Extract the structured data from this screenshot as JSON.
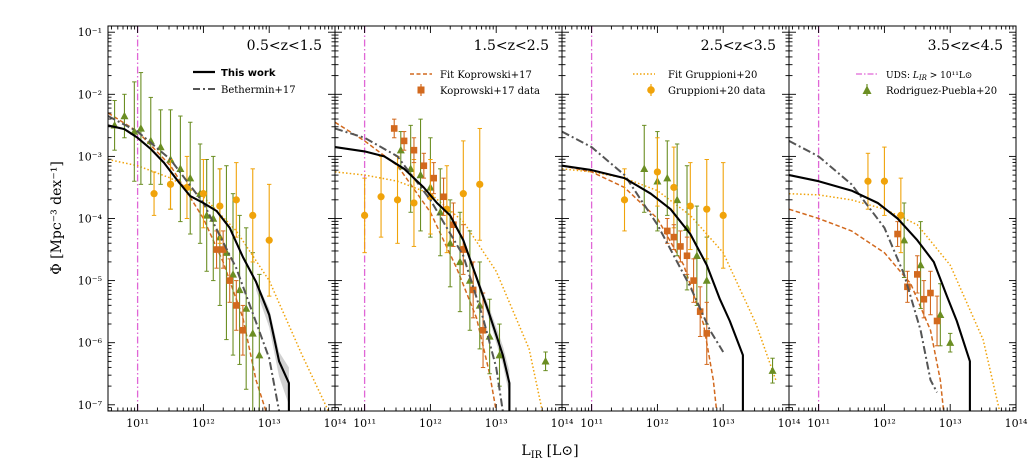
{
  "figure": {
    "ylabel": "Φ [Mpc⁻³ dex⁻¹]",
    "xlabel": "L_IR [L⊙]",
    "xlabel_main": "L",
    "xlabel_sub": "IR",
    "xlabel_unit": " [L⊙]",
    "ytick_labels": [
      "10⁻¹",
      "10⁻²",
      "10⁻³",
      "10⁻⁴",
      "10⁻⁵",
      "10⁻⁶",
      "10⁻⁷"
    ],
    "xtick_labels": [
      "10¹¹",
      "10¹²",
      "10¹³",
      "10¹⁴"
    ]
  },
  "colors": {
    "this_work": "#000000",
    "bethermin": "#555555",
    "koprowski": "#d2691e",
    "gruppioni": "#f0a30a",
    "rodriguez": "#6b8e23",
    "uds": "#e066d6",
    "band": "#cccccc"
  },
  "legend": {
    "this_work": "This work",
    "bethermin": "Bethermin+17",
    "fit_koprowski": "Fit Koprowski+17",
    "koprowski_data": "Koprowski+17 data",
    "fit_gruppioni": "Fit Gruppioni+20",
    "gruppioni_data": "Gruppioni+20 data",
    "uds": "UDS: L_IR > 10¹¹L⊙",
    "uds_prefix": "UDS: ",
    "uds_L": "L",
    "uds_sub": "IR",
    "uds_rest": " > 10¹¹L⊙",
    "rodriguez": "Rodriguez-Puebla+20"
  },
  "chart_data": [
    {
      "type": "line",
      "title": "0.5<z<1.5",
      "xscale": "log",
      "yscale": "log",
      "xlim": [
        10.55,
        14.0
      ],
      "ylim": [
        -7.1,
        -0.9
      ],
      "uds_x": 11.0,
      "series": [
        {
          "name": "This work",
          "x": [
            10.55,
            10.8,
            11.0,
            11.2,
            11.4,
            11.6,
            11.8,
            12.0,
            12.2,
            12.4,
            12.6,
            12.8,
            13.0,
            13.15,
            13.3,
            13.3
          ],
          "y": [
            -2.5,
            -2.56,
            -2.7,
            -2.88,
            -3.1,
            -3.38,
            -3.64,
            -3.75,
            -3.88,
            -4.15,
            -4.62,
            -5.02,
            -5.55,
            -6.3,
            -6.65,
            -7.1
          ]
        },
        {
          "name": "This work band upper",
          "x": [
            12.8,
            13.0,
            13.15,
            13.3
          ],
          "y": [
            -5.0,
            -5.45,
            -6.15,
            -6.4
          ]
        },
        {
          "name": "This work band lower",
          "x": [
            12.8,
            13.0,
            13.15,
            13.3
          ],
          "y": [
            -5.15,
            -5.75,
            -6.55,
            -7.0
          ]
        },
        {
          "name": "Bethermin+17",
          "x": [
            10.55,
            11.0,
            11.5,
            12.0,
            12.5,
            13.0,
            13.15
          ],
          "y": [
            -2.35,
            -2.6,
            -3.05,
            -3.75,
            -4.8,
            -6.25,
            -7.1
          ]
        },
        {
          "name": "Fit Koprowski+17",
          "x": [
            10.55,
            11.0,
            11.5,
            12.0,
            12.3,
            12.6,
            12.8,
            12.95
          ],
          "y": [
            -2.3,
            -2.6,
            -3.15,
            -4.0,
            -4.7,
            -5.6,
            -6.6,
            -7.1
          ]
        },
        {
          "name": "Fit Gruppioni+20",
          "x": [
            10.55,
            11.0,
            11.5,
            12.0,
            12.5,
            13.0,
            13.5,
            13.9
          ],
          "y": [
            -3.05,
            -3.15,
            -3.35,
            -3.65,
            -4.2,
            -5.0,
            -6.2,
            -7.1
          ]
        }
      ],
      "koprowski_data": {
        "x": [
          12.2,
          12.3,
          12.4,
          12.5,
          12.6
        ],
        "y": [
          -4.5,
          -4.5,
          -5.0,
          -5.4,
          -5.8
        ],
        "yerr": [
          0.3,
          0.3,
          0.35,
          0.4,
          0.4
        ]
      },
      "gruppioni_data": {
        "x": [
          11.25,
          11.5,
          11.75,
          12.0,
          12.25,
          12.5,
          12.75,
          13.0
        ],
        "y": [
          -3.6,
          -3.45,
          -3.5,
          -3.6,
          -3.8,
          -3.7,
          -3.95,
          -4.35
        ],
        "yerr": [
          0.35,
          0.4,
          0.5,
          0.55,
          0.6,
          0.6,
          0.75,
          0.9
        ]
      },
      "rodriguez_data": {
        "x": [
          10.65,
          10.8,
          10.95,
          11.05,
          11.2,
          11.35,
          11.5,
          11.65,
          11.8,
          11.95,
          12.05,
          12.15,
          12.25,
          12.35,
          12.45,
          12.55,
          12.65,
          12.75,
          12.85
        ],
        "y": [
          -2.5,
          -2.35,
          -2.6,
          -2.55,
          -2.75,
          -2.85,
          -3.05,
          -3.2,
          -3.35,
          -3.6,
          -3.95,
          -4.0,
          -4.3,
          -4.55,
          -4.9,
          -5.15,
          -5.45,
          -5.85,
          -6.2
        ],
        "yerr": [
          0.4,
          0.35,
          0.8,
          0.9,
          0.7,
          0.6,
          0.8,
          0.85,
          0.9,
          0.8,
          0.9,
          1.0,
          1.1,
          1.4,
          1.3,
          1.2,
          1.3,
          1.3,
          1.3
        ]
      }
    },
    {
      "type": "line",
      "title": "1.5<z<2.5",
      "xscale": "log",
      "yscale": "log",
      "xlim": [
        10.55,
        14.0
      ],
      "ylim": [
        -7.1,
        -0.9
      ],
      "uds_x": 11.0,
      "series": [
        {
          "name": "This work",
          "x": [
            10.55,
            11.0,
            11.3,
            11.6,
            11.9,
            12.1,
            12.3,
            12.5,
            12.7,
            12.9,
            13.1,
            13.2,
            13.2
          ],
          "y": [
            -2.85,
            -2.92,
            -3.0,
            -3.2,
            -3.5,
            -3.75,
            -3.95,
            -4.35,
            -4.95,
            -5.55,
            -6.2,
            -6.65,
            -7.1
          ]
        },
        {
          "name": "This work band upper",
          "x": [
            12.7,
            12.9,
            13.1,
            13.2
          ],
          "y": [
            -4.9,
            -5.45,
            -6.05,
            -6.45
          ]
        },
        {
          "name": "This work band lower",
          "x": [
            12.7,
            12.9,
            13.1,
            13.2
          ],
          "y": [
            -5.0,
            -5.65,
            -6.35,
            -6.85
          ]
        },
        {
          "name": "Bethermin+17",
          "x": [
            10.55,
            11.0,
            11.5,
            12.0,
            12.5,
            12.8,
            13.0,
            13.1
          ],
          "y": [
            -2.55,
            -2.7,
            -3.0,
            -3.7,
            -4.6,
            -5.6,
            -6.4,
            -7.1
          ]
        },
        {
          "name": "Fit Koprowski+17",
          "x": [
            10.55,
            11.0,
            11.5,
            12.0,
            12.4,
            12.7,
            12.9,
            13.0
          ],
          "y": [
            -2.45,
            -2.75,
            -3.15,
            -3.9,
            -4.8,
            -5.6,
            -6.5,
            -7.1
          ]
        },
        {
          "name": "Fit Gruppioni+20",
          "x": [
            10.55,
            11.0,
            11.5,
            12.0,
            12.5,
            13.0,
            13.5,
            13.7
          ],
          "y": [
            -3.25,
            -3.3,
            -3.4,
            -3.6,
            -4.05,
            -4.85,
            -6.1,
            -7.1
          ]
        }
      ],
      "koprowski_data": {
        "x": [
          11.45,
          11.6,
          11.75,
          11.9,
          12.05,
          12.2,
          12.35,
          12.5,
          12.65,
          12.8
        ],
        "y": [
          -2.55,
          -2.75,
          -2.9,
          -3.15,
          -3.35,
          -3.65,
          -4.1,
          -4.5,
          -5.15,
          -5.8
        ],
        "yerr": [
          0.15,
          0.15,
          0.2,
          0.2,
          0.25,
          0.3,
          0.35,
          0.4,
          0.45,
          0.6
        ]
      },
      "gruppioni_data": {
        "x": [
          11.0,
          11.25,
          11.5,
          11.75,
          12.0,
          12.25,
          12.5,
          12.75
        ],
        "y": [
          -3.95,
          -3.65,
          -3.7,
          -3.75,
          -3.65,
          -3.85,
          -3.6,
          -3.45
        ],
        "yerr": [
          0.6,
          0.65,
          0.7,
          0.7,
          0.6,
          0.7,
          0.85,
          0.9
        ]
      },
      "rodriguez_data": {
        "x": [
          11.55,
          11.7,
          11.85,
          12.0,
          12.15,
          12.3,
          12.45,
          12.6,
          12.75,
          12.9,
          13.05,
          13.75
        ],
        "y": [
          -2.9,
          -3.2,
          -3.3,
          -3.5,
          -3.9,
          -4.4,
          -4.7,
          -5.0,
          -5.4,
          -5.9,
          -6.2,
          -6.3
        ],
        "yerr": [
          0.3,
          0.7,
          0.9,
          0.8,
          0.7,
          0.7,
          0.8,
          0.8,
          0.7,
          0.6,
          0.5,
          0.15
        ]
      }
    },
    {
      "type": "line",
      "title": "2.5<z<3.5",
      "xscale": "log",
      "yscale": "log",
      "xlim": [
        10.55,
        14.0
      ],
      "ylim": [
        -7.1,
        -0.9
      ],
      "uds_x": 11.0,
      "series": [
        {
          "name": "This work",
          "x": [
            10.55,
            11.0,
            11.5,
            11.9,
            12.2,
            12.5,
            12.75,
            12.95,
            13.1,
            13.3,
            13.3
          ],
          "y": [
            -3.15,
            -3.22,
            -3.35,
            -3.6,
            -3.85,
            -4.25,
            -4.75,
            -5.3,
            -5.65,
            -6.2,
            -7.1
          ]
        },
        {
          "name": "Bethermin+17",
          "x": [
            10.55,
            11.0,
            11.5,
            12.0,
            12.5,
            12.8,
            13.0
          ],
          "y": [
            -2.6,
            -2.85,
            -3.3,
            -4.1,
            -5.1,
            -5.8,
            -6.15
          ]
        },
        {
          "name": "Fit Koprowski+17",
          "x": [
            10.55,
            11.0,
            11.5,
            12.0,
            12.4,
            12.7,
            12.85,
            12.9
          ],
          "y": [
            -3.15,
            -3.25,
            -3.5,
            -4.0,
            -4.75,
            -5.7,
            -6.6,
            -7.1
          ]
        },
        {
          "name": "Fit Gruppioni+20",
          "x": [
            10.55,
            11.0,
            11.5,
            12.0,
            12.5,
            13.0,
            13.5,
            13.8
          ],
          "y": [
            -3.2,
            -3.25,
            -3.35,
            -3.55,
            -3.95,
            -4.55,
            -5.7,
            -6.6
          ]
        }
      ],
      "koprowski_data": {
        "x": [
          12.15,
          12.25,
          12.35,
          12.45,
          12.55,
          12.65,
          12.75
        ],
        "y": [
          -4.2,
          -4.3,
          -4.45,
          -4.6,
          -5.0,
          -5.5,
          -5.85
        ],
        "yerr": [
          0.2,
          0.2,
          0.25,
          0.3,
          0.35,
          0.4,
          0.5
        ]
      },
      "gruppioni_data": {
        "x": [
          11.5,
          12.0,
          12.25,
          12.5,
          12.75,
          13.0
        ],
        "y": [
          -3.7,
          -3.25,
          -3.5,
          -3.8,
          -3.85,
          -3.95
        ],
        "yerr": [
          0.5,
          0.55,
          0.65,
          0.7,
          0.8,
          0.85
        ]
      },
      "rodriguez_data": {
        "x": [
          11.8,
          12.0,
          12.15,
          12.3,
          12.45,
          12.6,
          12.75,
          13.75
        ],
        "y": [
          -3.2,
          -3.4,
          -3.35,
          -3.7,
          -4.15,
          -4.6,
          -5.0,
          -6.45
        ],
        "yerr": [
          0.7,
          0.8,
          0.6,
          0.9,
          1.0,
          0.8,
          0.7,
          0.2
        ]
      }
    },
    {
      "type": "line",
      "title": "3.5<z<4.5",
      "xscale": "log",
      "yscale": "log",
      "xlim": [
        10.55,
        14.0
      ],
      "ylim": [
        -7.1,
        -0.9
      ],
      "uds_x": 11.0,
      "series": [
        {
          "name": "This work",
          "x": [
            10.55,
            11.0,
            11.5,
            11.9,
            12.2,
            12.5,
            12.75,
            12.95,
            13.1,
            13.3,
            13.3
          ],
          "y": [
            -3.3,
            -3.4,
            -3.55,
            -3.75,
            -4.0,
            -4.35,
            -4.7,
            -5.25,
            -5.65,
            -6.3,
            -7.1
          ]
        },
        {
          "name": "Bethermin+17",
          "x": [
            10.55,
            11.0,
            11.5,
            12.0,
            12.3,
            12.55,
            12.7,
            12.8
          ],
          "y": [
            -2.75,
            -3.0,
            -3.45,
            -4.15,
            -4.9,
            -5.8,
            -6.6,
            -6.8
          ]
        },
        {
          "name": "Fit Koprowski+17",
          "x": [
            10.55,
            11.0,
            11.5,
            12.0,
            12.4,
            12.7,
            12.85,
            12.9
          ],
          "y": [
            -3.85,
            -4.0,
            -4.2,
            -4.55,
            -5.05,
            -5.8,
            -6.6,
            -7.1
          ]
        },
        {
          "name": "Fit Gruppioni+20",
          "x": [
            10.55,
            11.0,
            11.5,
            12.0,
            12.5,
            13.0,
            13.5,
            13.75
          ],
          "y": [
            -3.6,
            -3.62,
            -3.7,
            -3.85,
            -4.1,
            -4.75,
            -5.95,
            -7.1
          ]
        }
      ],
      "koprowski_data": {
        "x": [
          12.2,
          12.35,
          12.5,
          12.6,
          12.7,
          12.8
        ],
        "y": [
          -4.25,
          -5.1,
          -4.9,
          -5.3,
          -5.2,
          -5.65
        ],
        "yerr": [
          0.2,
          0.25,
          0.3,
          0.3,
          0.35,
          0.4
        ]
      },
      "gruppioni_data": {
        "x": [
          11.75,
          12.0,
          12.25
        ],
        "y": [
          -3.4,
          -3.4,
          -3.95
        ],
        "yerr": [
          0.45,
          0.55,
          0.6
        ]
      },
      "rodriguez_data": {
        "x": [
          12.3,
          12.55,
          12.85,
          13.0
        ],
        "y": [
          -4.35,
          -4.75,
          -5.55,
          -6.0
        ],
        "yerr": [
          0.6,
          0.7,
          0.5,
          0.15
        ]
      }
    }
  ]
}
